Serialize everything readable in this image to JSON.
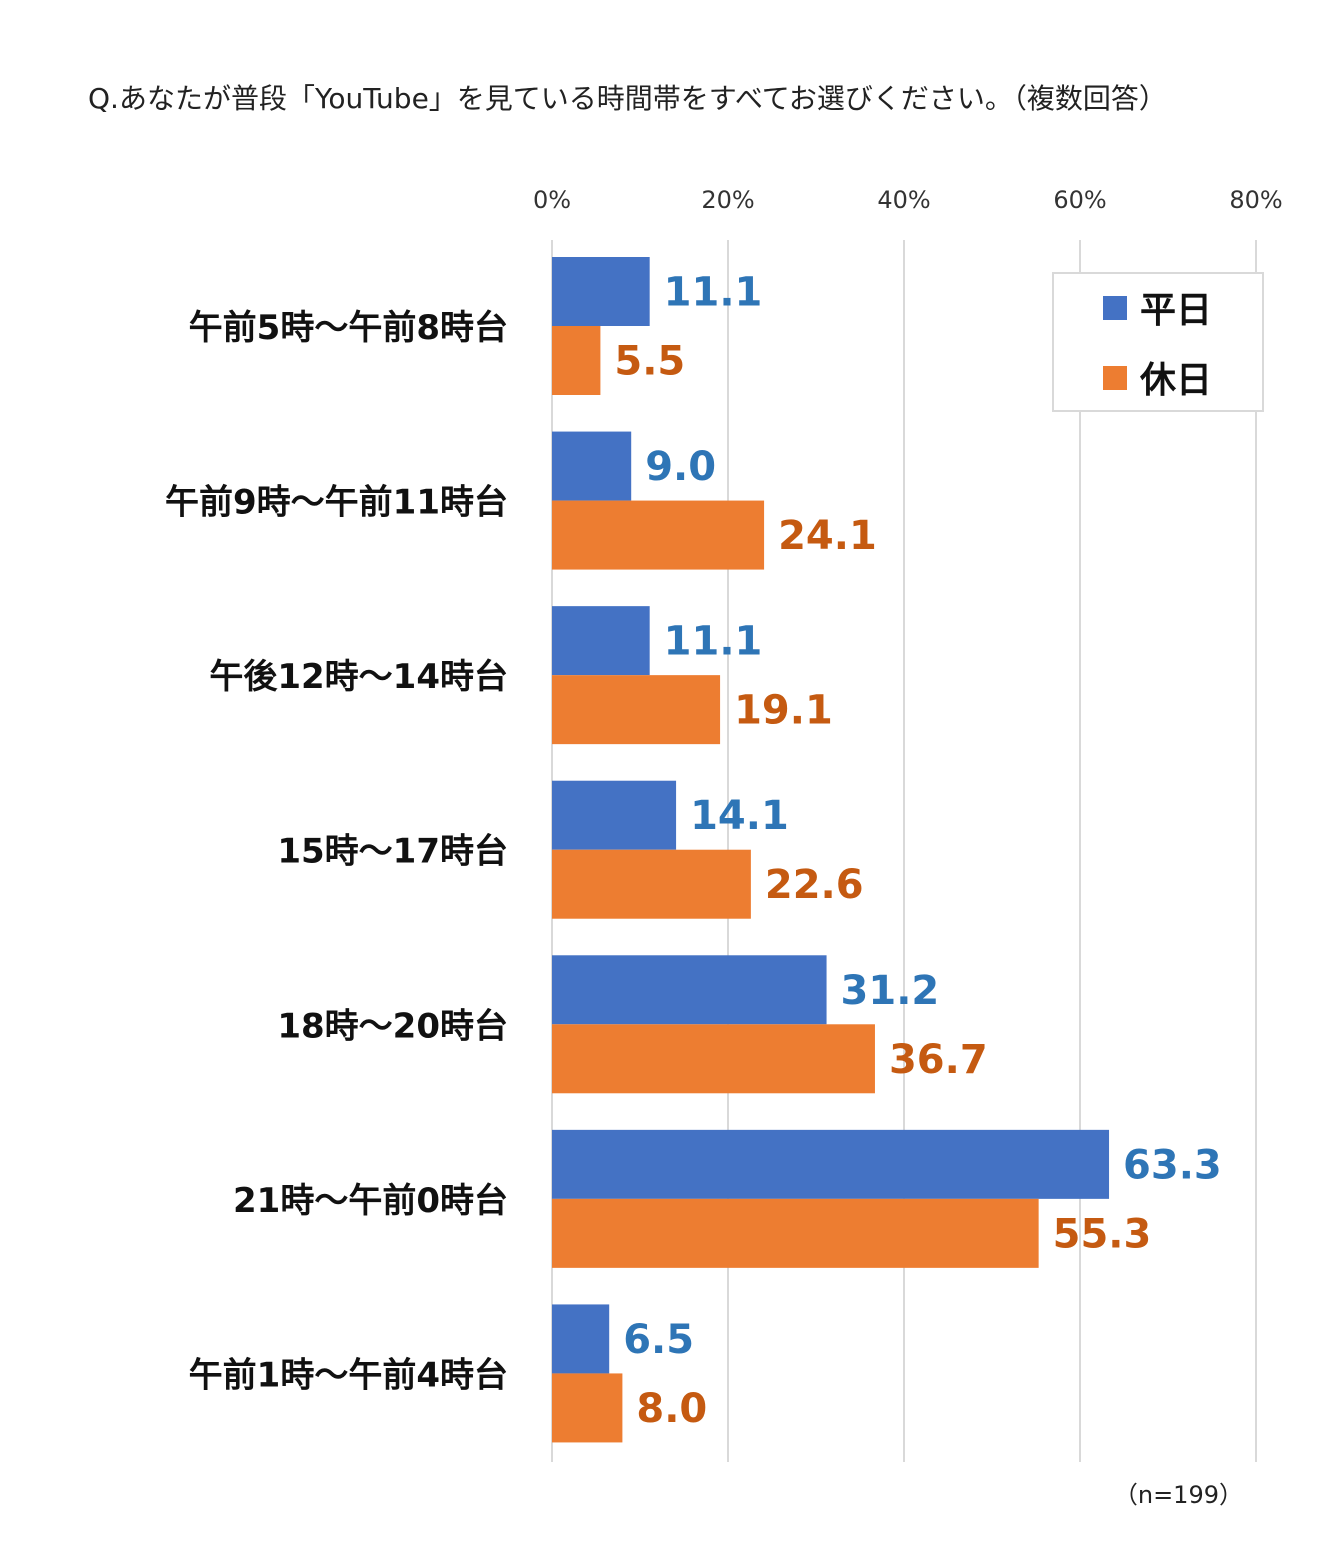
{
  "chart_data": {
    "type": "bar",
    "orientation": "horizontal",
    "title": "Q.あなたが普段「YouTube」を見ている時間帯をすべてお選びください。（複数回答）",
    "categories": [
      "午前5時～午前8時台",
      "午前9時～午前11時台",
      "午後12時～14時台",
      "15時～17時台",
      "18時～20時台",
      "21時～午前0時台",
      "午前1時～午前4時台"
    ],
    "series": [
      {
        "name": "平日",
        "color": "#4472C4",
        "label_color": "#2E75B6",
        "values": [
          11.1,
          9.0,
          11.1,
          14.1,
          31.2,
          63.3,
          6.5
        ],
        "labels": [
          "11.1",
          "9.0",
          "11.1",
          "14.1",
          "31.2",
          "63.3",
          "6.5"
        ]
      },
      {
        "name": "休日",
        "color": "#ED7D31",
        "label_color": "#C55A11",
        "values": [
          5.5,
          24.1,
          19.1,
          22.6,
          36.7,
          55.3,
          8.0
        ],
        "labels": [
          "5.5",
          "24.1",
          "19.1",
          "22.6",
          "36.7",
          "55.3",
          "8.0"
        ]
      }
    ],
    "xlim": [
      0,
      80
    ],
    "xticks": [
      "0%",
      "20%",
      "40%",
      "60%",
      "80%"
    ],
    "xtick_values": [
      0,
      20,
      40,
      60,
      80
    ],
    "grid": true,
    "legend_position": "top-right",
    "note": "（n=199）"
  }
}
